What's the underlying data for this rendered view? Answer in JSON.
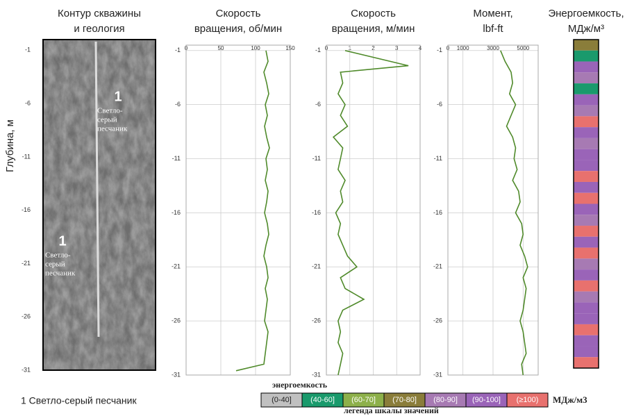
{
  "chart_data": [
    {
      "type": "image",
      "title": [
        "Контур скважины",
        "и геология"
      ],
      "ylabel": "Глубина, м",
      "ylim": [
        -31,
        0
      ],
      "yticks": [
        -1,
        -6,
        -11,
        -16,
        -21,
        -26,
        -31
      ],
      "annotations": [
        {
          "number": "1",
          "lines": [
            "Светло-",
            "серый",
            "песчаник"
          ]
        },
        {
          "number": "1",
          "lines": [
            "Светло-",
            "серый",
            "песчаник"
          ]
        }
      ],
      "caption": "1 Светло-серый песчаник"
    },
    {
      "type": "line",
      "title": [
        "Скорость",
        "вращения, об/мин"
      ],
      "color": "#4f8a2a",
      "grid": true,
      "xlim": [
        0,
        150
      ],
      "xticks": [
        0,
        50,
        100,
        150
      ],
      "ylim": [
        -31,
        -0.5
      ],
      "yticks": [
        -1,
        -6,
        -11,
        -16,
        -21,
        -26,
        -31
      ],
      "depths": [
        -1,
        -2,
        -3,
        -4,
        -5,
        -6,
        -7,
        -8,
        -9,
        -10,
        -11,
        -12,
        -13,
        -14,
        -15,
        -16,
        -17,
        -18,
        -19,
        -20,
        -21,
        -22,
        -23,
        -24,
        -25,
        -26,
        -27,
        -28,
        -29,
        -30,
        -30.6
      ],
      "values": [
        115,
        118,
        112,
        116,
        119,
        114,
        117,
        113,
        116,
        120,
        115,
        117,
        114,
        118,
        116,
        113,
        117,
        119,
        115,
        112,
        116,
        118,
        114,
        117,
        115,
        113,
        118,
        116,
        114,
        112,
        72
      ]
    },
    {
      "type": "line",
      "title": [
        "Скорость",
        "вращения, м/мин"
      ],
      "color": "#4f8a2a",
      "grid": true,
      "xlim": [
        0,
        4
      ],
      "xticks": [
        0,
        1,
        2,
        3,
        4
      ],
      "ylim": [
        -31,
        -0.5
      ],
      "yticks": [
        -1,
        -6,
        -11,
        -16,
        -21,
        -26,
        -31
      ],
      "depths": [
        -1,
        -2.4,
        -3,
        -4,
        -5,
        -6,
        -7,
        -8,
        -9,
        -10,
        -11,
        -12,
        -13,
        -14,
        -15,
        -16,
        -17,
        -18,
        -19,
        -20,
        -21,
        -22,
        -23,
        -24,
        -25,
        -26,
        -27,
        -28,
        -29,
        -30,
        -31
      ],
      "values": [
        0.8,
        3.5,
        0.6,
        0.7,
        0.5,
        0.8,
        0.6,
        0.9,
        0.3,
        0.7,
        0.6,
        0.5,
        0.8,
        0.6,
        0.7,
        0.4,
        0.6,
        0.5,
        0.7,
        0.9,
        1.3,
        0.6,
        0.8,
        1.6,
        0.7,
        0.5,
        0.6,
        0.5,
        0.7,
        0.6,
        0.5
      ]
    },
    {
      "type": "line",
      "title": [
        "Момент,",
        "lbf-ft"
      ],
      "color": "#4f8a2a",
      "grid": true,
      "xlim": [
        0,
        6000
      ],
      "xticks": [
        0,
        1000,
        3000,
        5000
      ],
      "ylim": [
        -31,
        -0.5
      ],
      "yticks": [
        -1,
        -6,
        -11,
        -16,
        -21,
        -26,
        -31
      ],
      "depths": [
        -1,
        -2,
        -3,
        -4,
        -5,
        -6,
        -7,
        -8,
        -9,
        -10,
        -11,
        -12,
        -13,
        -14,
        -15,
        -16,
        -17,
        -18,
        -19,
        -20,
        -21,
        -22,
        -23,
        -24,
        -25,
        -26,
        -27,
        -28,
        -29,
        -30,
        -31
      ],
      "values": [
        3500,
        3800,
        4200,
        4300,
        4100,
        4500,
        4200,
        3900,
        4300,
        4500,
        4400,
        4600,
        4300,
        4700,
        4800,
        4500,
        4900,
        5000,
        4800,
        5100,
        5300,
        5000,
        5200,
        5100,
        5000,
        4800,
        5000,
        5100,
        5200,
        4900,
        5000
      ]
    },
    {
      "type": "heatmap",
      "title": [
        "Энергоемкость,",
        "МДж/м³"
      ],
      "ylim": [
        -31,
        -1
      ],
      "depth_bins": [
        -1,
        -2,
        -3,
        -4,
        -5,
        -6,
        -7,
        -8,
        -9,
        -10,
        -11,
        -12,
        -13,
        -14,
        -15,
        -16,
        -17,
        -18,
        -19,
        -20,
        -21,
        -22,
        -23,
        -24,
        -25,
        -26,
        -27,
        -28,
        -29,
        -30,
        -31
      ],
      "values": [
        75,
        45,
        95,
        85,
        55,
        92,
        88,
        105,
        95,
        85,
        92,
        98,
        110,
        96,
        104,
        92,
        88,
        108,
        95,
        102,
        90,
        96,
        105,
        88,
        94,
        99,
        108,
        92,
        97,
        101
      ],
      "legend_title": "энергоемкость",
      "legend_subtitle": "легенда шкалы значений",
      "legend_unit": "МДж/м3",
      "legend": [
        {
          "label": "(0-40]",
          "min": 0,
          "max": 40,
          "color": "#c0c0c0"
        },
        {
          "label": "(40-60]",
          "min": 40,
          "max": 60,
          "color": "#1a9a6c"
        },
        {
          "label": "(60-70]",
          "min": 60,
          "max": 70,
          "color": "#8db04a"
        },
        {
          "label": "(70-80]",
          "min": 70,
          "max": 80,
          "color": "#8a7d3a"
        },
        {
          "label": "(80-90]",
          "min": 80,
          "max": 90,
          "color": "#a77ab3"
        },
        {
          "label": "(90-100]",
          "min": 90,
          "max": 100,
          "color": "#9a64b8"
        },
        {
          "label": "(≥100)",
          "min": 100,
          "max": null,
          "color": "#e8716e"
        }
      ]
    }
  ]
}
